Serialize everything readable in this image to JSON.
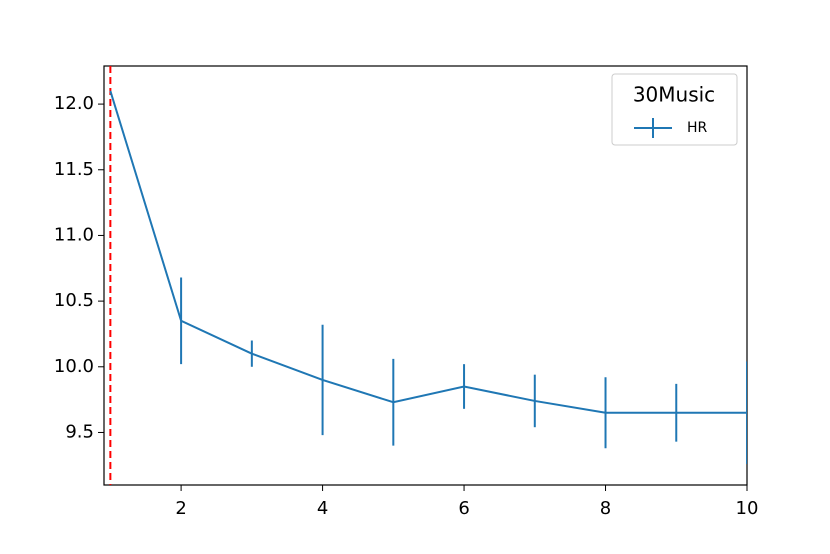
{
  "chart_data": {
    "type": "line",
    "x": [
      1,
      2,
      3,
      4,
      5,
      6,
      7,
      8,
      9,
      10
    ],
    "series": [
      {
        "name": "HR",
        "color": "#1f77b4",
        "values": [
          12.1,
          10.35,
          10.1,
          9.9,
          9.73,
          9.85,
          9.74,
          9.65,
          9.65,
          9.65
        ],
        "errors": [
          0,
          0.33,
          0.1,
          0.42,
          0.33,
          0.17,
          0.2,
          0.27,
          0.22,
          0.39
        ]
      }
    ],
    "xlim": [
      0.91,
      10
    ],
    "ylim": [
      9.1,
      12.29
    ],
    "xticks": [
      2,
      4,
      6,
      8,
      10
    ],
    "yticks": [
      9.5,
      {
        "value": 10,
        "label": "10.0"
      },
      10.5,
      {
        "value": 11,
        "label": "11.0"
      },
      11.5,
      {
        "value": 12,
        "label": "12.0"
      }
    ],
    "vline": {
      "x": 1,
      "color": "#ff0000"
    },
    "legend_title": "30Music",
    "legend_position": "upper right"
  }
}
